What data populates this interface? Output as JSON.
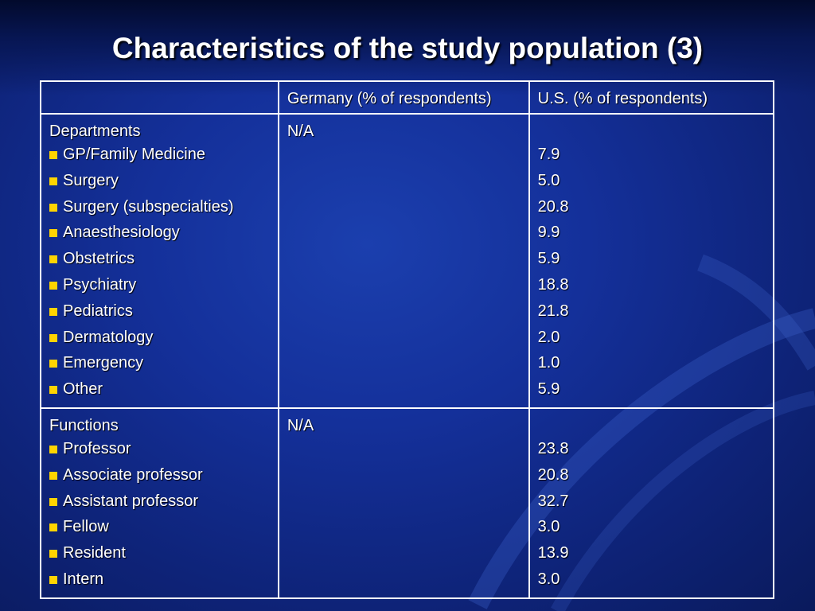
{
  "slide": {
    "title": "Characteristics of the study population (3)"
  },
  "table": {
    "headers": [
      "",
      "Germany (% of respondents)",
      "U.S. (% of respondents)"
    ],
    "groups": [
      {
        "label": "Departments",
        "germany": "N/A",
        "rows": [
          {
            "name": "GP/Family Medicine",
            "us": "7.9"
          },
          {
            "name": "Surgery",
            "us": "5.0"
          },
          {
            "name": "Surgery (subspecialties)",
            "us": "20.8"
          },
          {
            "name": "Anaesthesiology",
            "us": "9.9"
          },
          {
            "name": "Obstetrics",
            "us": "5.9"
          },
          {
            "name": "Psychiatry",
            "us": "18.8"
          },
          {
            "name": "Pediatrics",
            "us": "21.8"
          },
          {
            "name": "Dermatology",
            "us": "2.0"
          },
          {
            "name": "Emergency",
            "us": "1.0"
          },
          {
            "name": "Other",
            "us": "5.9"
          }
        ]
      },
      {
        "label": "Functions",
        "germany": "N/A",
        "rows": [
          {
            "name": "Professor",
            "us": "23.8"
          },
          {
            "name": "Associate professor",
            "us": "20.8"
          },
          {
            "name": "Assistant professor",
            "us": "32.7"
          },
          {
            "name": "Fellow",
            "us": "3.0"
          },
          {
            "name": "Resident",
            "us": "13.9"
          },
          {
            "name": "Intern",
            "us": "3.0"
          }
        ]
      }
    ]
  },
  "colors": {
    "background": "#14309a",
    "bullet": "#ffd400",
    "text": "#ffffff"
  }
}
